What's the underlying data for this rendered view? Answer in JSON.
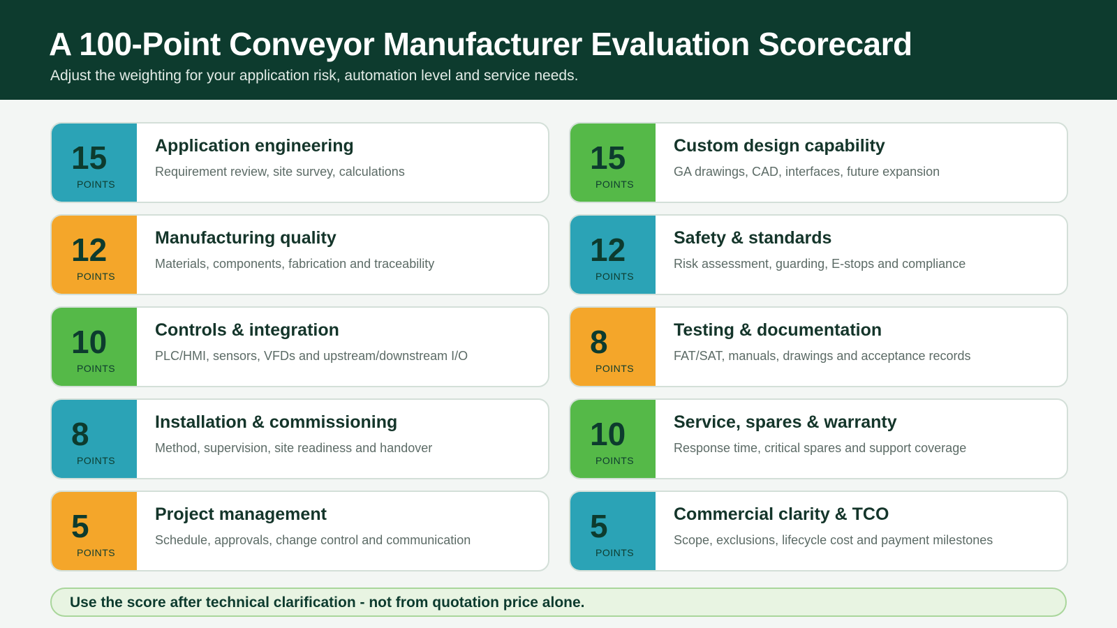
{
  "header": {
    "title": "A 100-Point Conveyor Manufacturer Evaluation Scorecard",
    "subtitle": "Adjust the weighting for your application risk, automation level and service needs."
  },
  "points_label": "POINTS",
  "cards": [
    {
      "points": "15",
      "color": "teal",
      "title": "Application engineering",
      "desc": "Requirement review, site survey, calculations"
    },
    {
      "points": "15",
      "color": "green",
      "title": "Custom design capability",
      "desc": "GA drawings, CAD, interfaces, future expansion"
    },
    {
      "points": "12",
      "color": "orange",
      "title": "Manufacturing quality",
      "desc": "Materials, components, fabrication and traceability"
    },
    {
      "points": "12",
      "color": "teal",
      "title": "Safety & standards",
      "desc": "Risk assessment, guarding, E-stops and compliance"
    },
    {
      "points": "10",
      "color": "green",
      "title": "Controls & integration",
      "desc": "PLC/HMI, sensors, VFDs and upstream/downstream I/O"
    },
    {
      "points": "8",
      "color": "orange",
      "title": "Testing & documentation",
      "desc": "FAT/SAT, manuals, drawings and acceptance records"
    },
    {
      "points": "8",
      "color": "teal",
      "title": "Installation & commissioning",
      "desc": "Method, supervision, site readiness and handover"
    },
    {
      "points": "10",
      "color": "green",
      "title": "Service, spares & warranty",
      "desc": "Response time, critical spares and support coverage"
    },
    {
      "points": "5",
      "color": "orange",
      "title": "Project management",
      "desc": "Schedule, approvals, change control and communication"
    },
    {
      "points": "5",
      "color": "teal",
      "title": "Commercial clarity & TCO",
      "desc": "Scope, exclusions, lifecycle cost and payment milestones"
    }
  ],
  "footer": {
    "note": "Use the score after technical clarification - not from quotation price alone."
  },
  "colors": {
    "header_bg": "#0d3b2e",
    "teal": "#2ba3b6",
    "orange": "#f4a62a",
    "green": "#55b948"
  }
}
